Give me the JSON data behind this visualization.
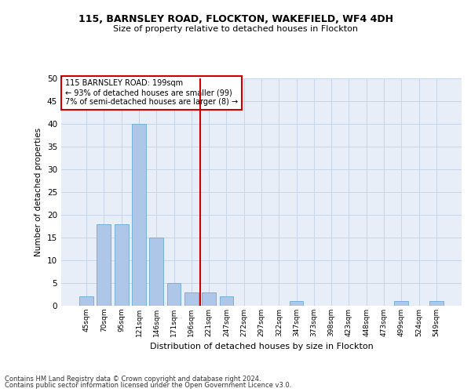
{
  "title1": "115, BARNSLEY ROAD, FLOCKTON, WAKEFIELD, WF4 4DH",
  "title2": "Size of property relative to detached houses in Flockton",
  "xlabel": "Distribution of detached houses by size in Flockton",
  "ylabel": "Number of detached properties",
  "categories": [
    "45sqm",
    "70sqm",
    "95sqm",
    "121sqm",
    "146sqm",
    "171sqm",
    "196sqm",
    "221sqm",
    "247sqm",
    "272sqm",
    "297sqm",
    "322sqm",
    "347sqm",
    "373sqm",
    "398sqm",
    "423sqm",
    "448sqm",
    "473sqm",
    "499sqm",
    "524sqm",
    "549sqm"
  ],
  "values": [
    2,
    18,
    18,
    40,
    15,
    5,
    3,
    3,
    2,
    0,
    0,
    0,
    1,
    0,
    0,
    0,
    0,
    0,
    1,
    0,
    1
  ],
  "bar_color": "#aec6e8",
  "bar_edgecolor": "#6aaad4",
  "vline_x": 6.5,
  "vline_color": "#cc0000",
  "annotation_lines": [
    "115 BARNSLEY ROAD: 199sqm",
    "← 93% of detached houses are smaller (99)",
    "7% of semi-detached houses are larger (8) →"
  ],
  "annotation_box_edgecolor": "#cc0000",
  "annotation_box_facecolor": "white",
  "ylim": [
    0,
    50
  ],
  "yticks": [
    0,
    5,
    10,
    15,
    20,
    25,
    30,
    35,
    40,
    45,
    50
  ],
  "grid_color": "#c8d4e8",
  "bg_color": "#e8eef8",
  "footer1": "Contains HM Land Registry data © Crown copyright and database right 2024.",
  "footer2": "Contains public sector information licensed under the Open Government Licence v3.0."
}
